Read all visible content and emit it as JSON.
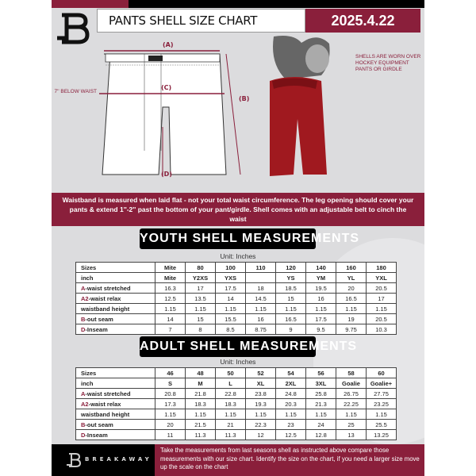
{
  "header": {
    "title": "PANTS SHELL SIZE CHART",
    "date": "2025.4.22"
  },
  "diagram": {
    "label_a": "(A)",
    "label_b": "(B)",
    "label_c": "(C)",
    "label_d": "(D)",
    "below_waist": "7'' BELOW WAIST",
    "note": "SHELLS ARE WORN OVER HOCKEY EQUIPMENT PANTS OR GIRDLE"
  },
  "banner": "Waistband is measured when laid flat - not your total waist circumference. The leg opening should cover your pants & extend 1''-2'' past the bottom of your pant/girdle. Shell comes with an adjustable belt to cinch the waist",
  "colors": {
    "accent": "#8a1f3b",
    "background": "#dcdcde"
  },
  "youth": {
    "title": "YOUTH SHELL MEASUREMENTS",
    "unit": "Unit: Inches",
    "rows": [
      {
        "prefix": "",
        "label": "Sizes",
        "values": [
          "Mite",
          "80",
          "100",
          "110",
          "120",
          "140",
          "160",
          "180"
        ]
      },
      {
        "prefix": "",
        "label": "inch",
        "values": [
          "Mite",
          "Y2XS",
          "YXS",
          "",
          "YS",
          "YM",
          "YL",
          "YXL"
        ]
      },
      {
        "prefix": "A",
        "label": "-waist stretched",
        "values": [
          "16.3",
          "17",
          "17.5",
          "18",
          "18.5",
          "19.5",
          "20",
          "20.5"
        ]
      },
      {
        "prefix": "A2",
        "label": "-waist relax",
        "values": [
          "12.5",
          "13.5",
          "14",
          "14.5",
          "15",
          "16",
          "16.5",
          "17"
        ]
      },
      {
        "prefix": "",
        "label": "waistband height",
        "values": [
          "1.15",
          "1.15",
          "1.15",
          "1.15",
          "1.15",
          "1.15",
          "1.15",
          "1.15"
        ]
      },
      {
        "prefix": "B",
        "label": "-out seam",
        "values": [
          "14",
          "15",
          "15.5",
          "16",
          "16.5",
          "17.5",
          "19",
          "20.5"
        ]
      },
      {
        "prefix": "D",
        "label": "-Inseam",
        "values": [
          "7",
          "8",
          "8.5",
          "8.75",
          "9",
          "9.5",
          "9.75",
          "10.3"
        ]
      }
    ]
  },
  "adult": {
    "title": "ADULT SHELL MEASUREMENTS",
    "unit": "Unit: Inches",
    "rows": [
      {
        "prefix": "",
        "label": "Sizes",
        "values": [
          "46",
          "48",
          "50",
          "52",
          "54",
          "56",
          "58",
          "60"
        ]
      },
      {
        "prefix": "",
        "label": "inch",
        "values": [
          "S",
          "M",
          "L",
          "XL",
          "2XL",
          "3XL",
          "Goalie",
          "Goalie+"
        ]
      },
      {
        "prefix": "A",
        "label": "-waist stretched",
        "values": [
          "20.8",
          "21.8",
          "22.8",
          "23.8",
          "24.8",
          "25.8",
          "26.75",
          "27.75"
        ]
      },
      {
        "prefix": "A2",
        "label": "-waist relax",
        "values": [
          "17.3",
          "18.3",
          "18.3",
          "19.3",
          "20.3",
          "21.3",
          "22.25",
          "23.25"
        ]
      },
      {
        "prefix": "",
        "label": "waistband height",
        "values": [
          "1.15",
          "1.15",
          "1.15",
          "1.15",
          "1.15",
          "1.15",
          "1.15",
          "1.15"
        ]
      },
      {
        "prefix": "B",
        "label": "-out seam",
        "values": [
          "20",
          "21.5",
          "21",
          "22.3",
          "23",
          "24",
          "25",
          "25.5"
        ]
      },
      {
        "prefix": "D",
        "label": "-Inseam",
        "values": [
          "11",
          "11.3",
          "11.3",
          "12",
          "12.5",
          "12.8",
          "13",
          "13.25"
        ]
      }
    ]
  },
  "footer": {
    "brand": "BREAKAWAY",
    "logo_letter": "B",
    "text": "Take the measurements from last seasons shell as instructed above compare those measurements  with our size chart. Identify the size on the chart, if you need a larger size move up the scale on the chart"
  }
}
